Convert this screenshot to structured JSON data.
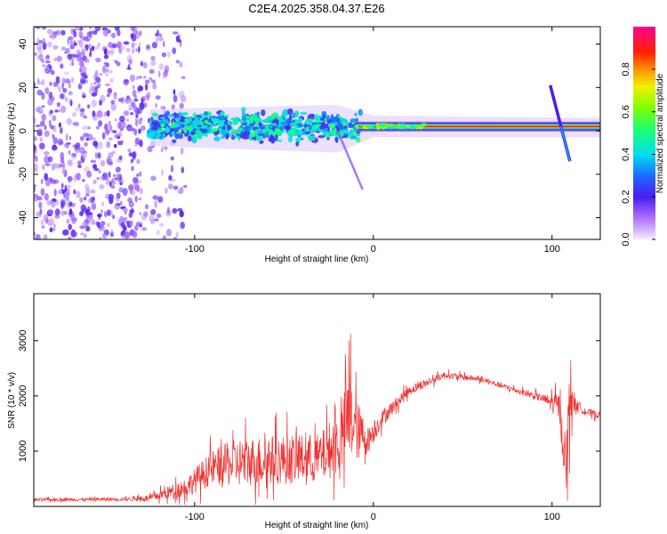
{
  "title": "C2E4.2025.358.04.37.E26",
  "chart_data": [
    {
      "type": "heatmap",
      "name": "spectrogram",
      "xlabel": "Height of straight line (km)",
      "ylabel": "Frequency (Hz)",
      "xlim": [
        -190,
        127
      ],
      "ylim": [
        -50,
        48
      ],
      "xticks": [
        -100,
        0,
        100
      ],
      "xtick_labels": [
        "-100",
        "0",
        "100"
      ],
      "yticks": [
        -40,
        -20,
        0,
        20,
        40
      ],
      "ytick_labels": [
        "-40",
        "-20",
        "0",
        "20",
        "40"
      ],
      "colorbar": {
        "label": "Normalized spectral amplitude",
        "range": [
          0,
          1
        ],
        "ticks": [
          0.0,
          0.2,
          0.4,
          0.6,
          0.8
        ],
        "tick_labels": [
          "0.0",
          "0.2",
          "0.4",
          "0.6",
          "0.8"
        ]
      },
      "features": {
        "noise_region_x": [
          -190,
          -105
        ],
        "central_band_hz": 2,
        "strong_band_x": [
          -5,
          127
        ],
        "chirp_up": {
          "x": [
            99,
            105
          ],
          "hz": [
            21,
            2
          ]
        },
        "chirp_down": {
          "x": [
            105,
            110
          ],
          "hz": [
            2,
            -14
          ]
        },
        "tail_down": {
          "x": [
            -20,
            -6
          ],
          "hz": [
            0,
            -27
          ]
        }
      }
    },
    {
      "type": "line",
      "name": "snr",
      "xlabel": "Height of straight line (km)",
      "ylabel": "SNR (10 * v/v)",
      "xlim": [
        -190,
        127
      ],
      "ylim": [
        0,
        3850
      ],
      "xticks": [
        -100,
        0,
        100
      ],
      "xtick_labels": [
        "-100",
        "0",
        "100"
      ],
      "yticks": [
        1000,
        2000,
        3000
      ],
      "ytick_labels": [
        "1000",
        "2000",
        "3000"
      ],
      "color": "#f03030",
      "envelope": {
        "x": [
          -190,
          -140,
          -125,
          -105,
          -90,
          -75,
          -50,
          -30,
          -18,
          -13,
          -10,
          -3,
          5,
          20,
          40,
          60,
          80,
          95,
          104,
          108,
          110,
          113,
          120,
          127
        ],
        "mean": [
          120,
          130,
          150,
          350,
          700,
          800,
          850,
          870,
          1200,
          1700,
          1400,
          1200,
          1600,
          2100,
          2380,
          2300,
          2100,
          1950,
          1800,
          700,
          2100,
          1850,
          1700,
          1650
        ],
        "spread": [
          60,
          60,
          120,
          350,
          650,
          900,
          900,
          900,
          1200,
          1800,
          1200,
          500,
          300,
          180,
          120,
          100,
          100,
          150,
          500,
          900,
          1500,
          200,
          150,
          120
        ]
      }
    }
  ]
}
